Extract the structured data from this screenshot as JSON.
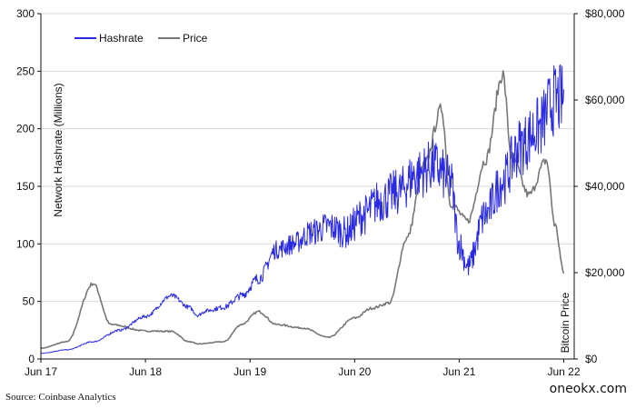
{
  "chart_data": {
    "type": "line",
    "x_ticks": [
      "Jun 17",
      "Jun 18",
      "Jun 19",
      "Jun 20",
      "Jun 21",
      "Jun 22"
    ],
    "y_left": {
      "label": "Network Hashrate (Millions)",
      "ticks": [
        "0",
        "50",
        "100",
        "150",
        "200",
        "250",
        "300"
      ],
      "range": [
        0,
        300
      ]
    },
    "y_right": {
      "label": "Bitcoin Price",
      "ticks": [
        "$0",
        "$20,000",
        "$40,000",
        "$60,000",
        "$80,000"
      ],
      "range": [
        0,
        80000
      ]
    },
    "grid": "horizontal",
    "legend_position": "top-left",
    "series": [
      {
        "name": "Hashrate",
        "axis": "left",
        "color": "#2a2ae0",
        "points": [
          [
            "2017-06",
            5
          ],
          [
            "2017-09",
            8
          ],
          [
            "2017-12",
            15
          ],
          [
            "2018-03",
            25
          ],
          [
            "2018-06",
            37
          ],
          [
            "2018-09",
            55
          ],
          [
            "2018-11",
            45
          ],
          [
            "2018-12",
            38
          ],
          [
            "2019-01",
            42
          ],
          [
            "2019-03",
            45
          ],
          [
            "2019-05",
            55
          ],
          [
            "2019-07",
            70
          ],
          [
            "2019-09",
            95
          ],
          [
            "2019-11",
            100
          ],
          [
            "2020-01",
            110
          ],
          [
            "2020-03",
            115
          ],
          [
            "2020-05",
            110
          ],
          [
            "2020-07",
            125
          ],
          [
            "2020-09",
            138
          ],
          [
            "2020-11",
            145
          ],
          [
            "2021-01",
            160
          ],
          [
            "2021-03",
            168
          ],
          [
            "2021-05",
            155
          ],
          [
            "2021-06",
            100
          ],
          [
            "2021-07",
            80
          ],
          [
            "2021-09",
            125
          ],
          [
            "2021-11",
            155
          ],
          [
            "2022-01",
            185
          ],
          [
            "2022-03",
            200
          ],
          [
            "2022-05",
            225
          ],
          [
            "2022-06",
            225
          ]
        ]
      },
      {
        "name": "Price",
        "axis": "right",
        "color": "#777777",
        "points": [
          [
            "2017-06",
            2500
          ],
          [
            "2017-09",
            4000
          ],
          [
            "2017-12",
            17500
          ],
          [
            "2018-02",
            8000
          ],
          [
            "2018-06",
            6500
          ],
          [
            "2018-09",
            6400
          ],
          [
            "2018-11",
            4000
          ],
          [
            "2018-12",
            3500
          ],
          [
            "2019-03",
            4000
          ],
          [
            "2019-05",
            8000
          ],
          [
            "2019-07",
            11000
          ],
          [
            "2019-09",
            8000
          ],
          [
            "2019-12",
            7200
          ],
          [
            "2020-03",
            5000
          ],
          [
            "2020-06",
            9500
          ],
          [
            "2020-08",
            11800
          ],
          [
            "2020-10",
            13000
          ],
          [
            "2020-12",
            28000
          ],
          [
            "2021-02",
            45000
          ],
          [
            "2021-04",
            58000
          ],
          [
            "2021-05",
            36000
          ],
          [
            "2021-07",
            32000
          ],
          [
            "2021-09",
            46000
          ],
          [
            "2021-11",
            66000
          ],
          [
            "2021-12",
            47000
          ],
          [
            "2022-02",
            38000
          ],
          [
            "2022-04",
            46000
          ],
          [
            "2022-05",
            31000
          ],
          [
            "2022-06",
            20000
          ]
        ]
      }
    ]
  },
  "source_text": "Source: Coinbase Analytics",
  "watermark": "oneokx.com"
}
